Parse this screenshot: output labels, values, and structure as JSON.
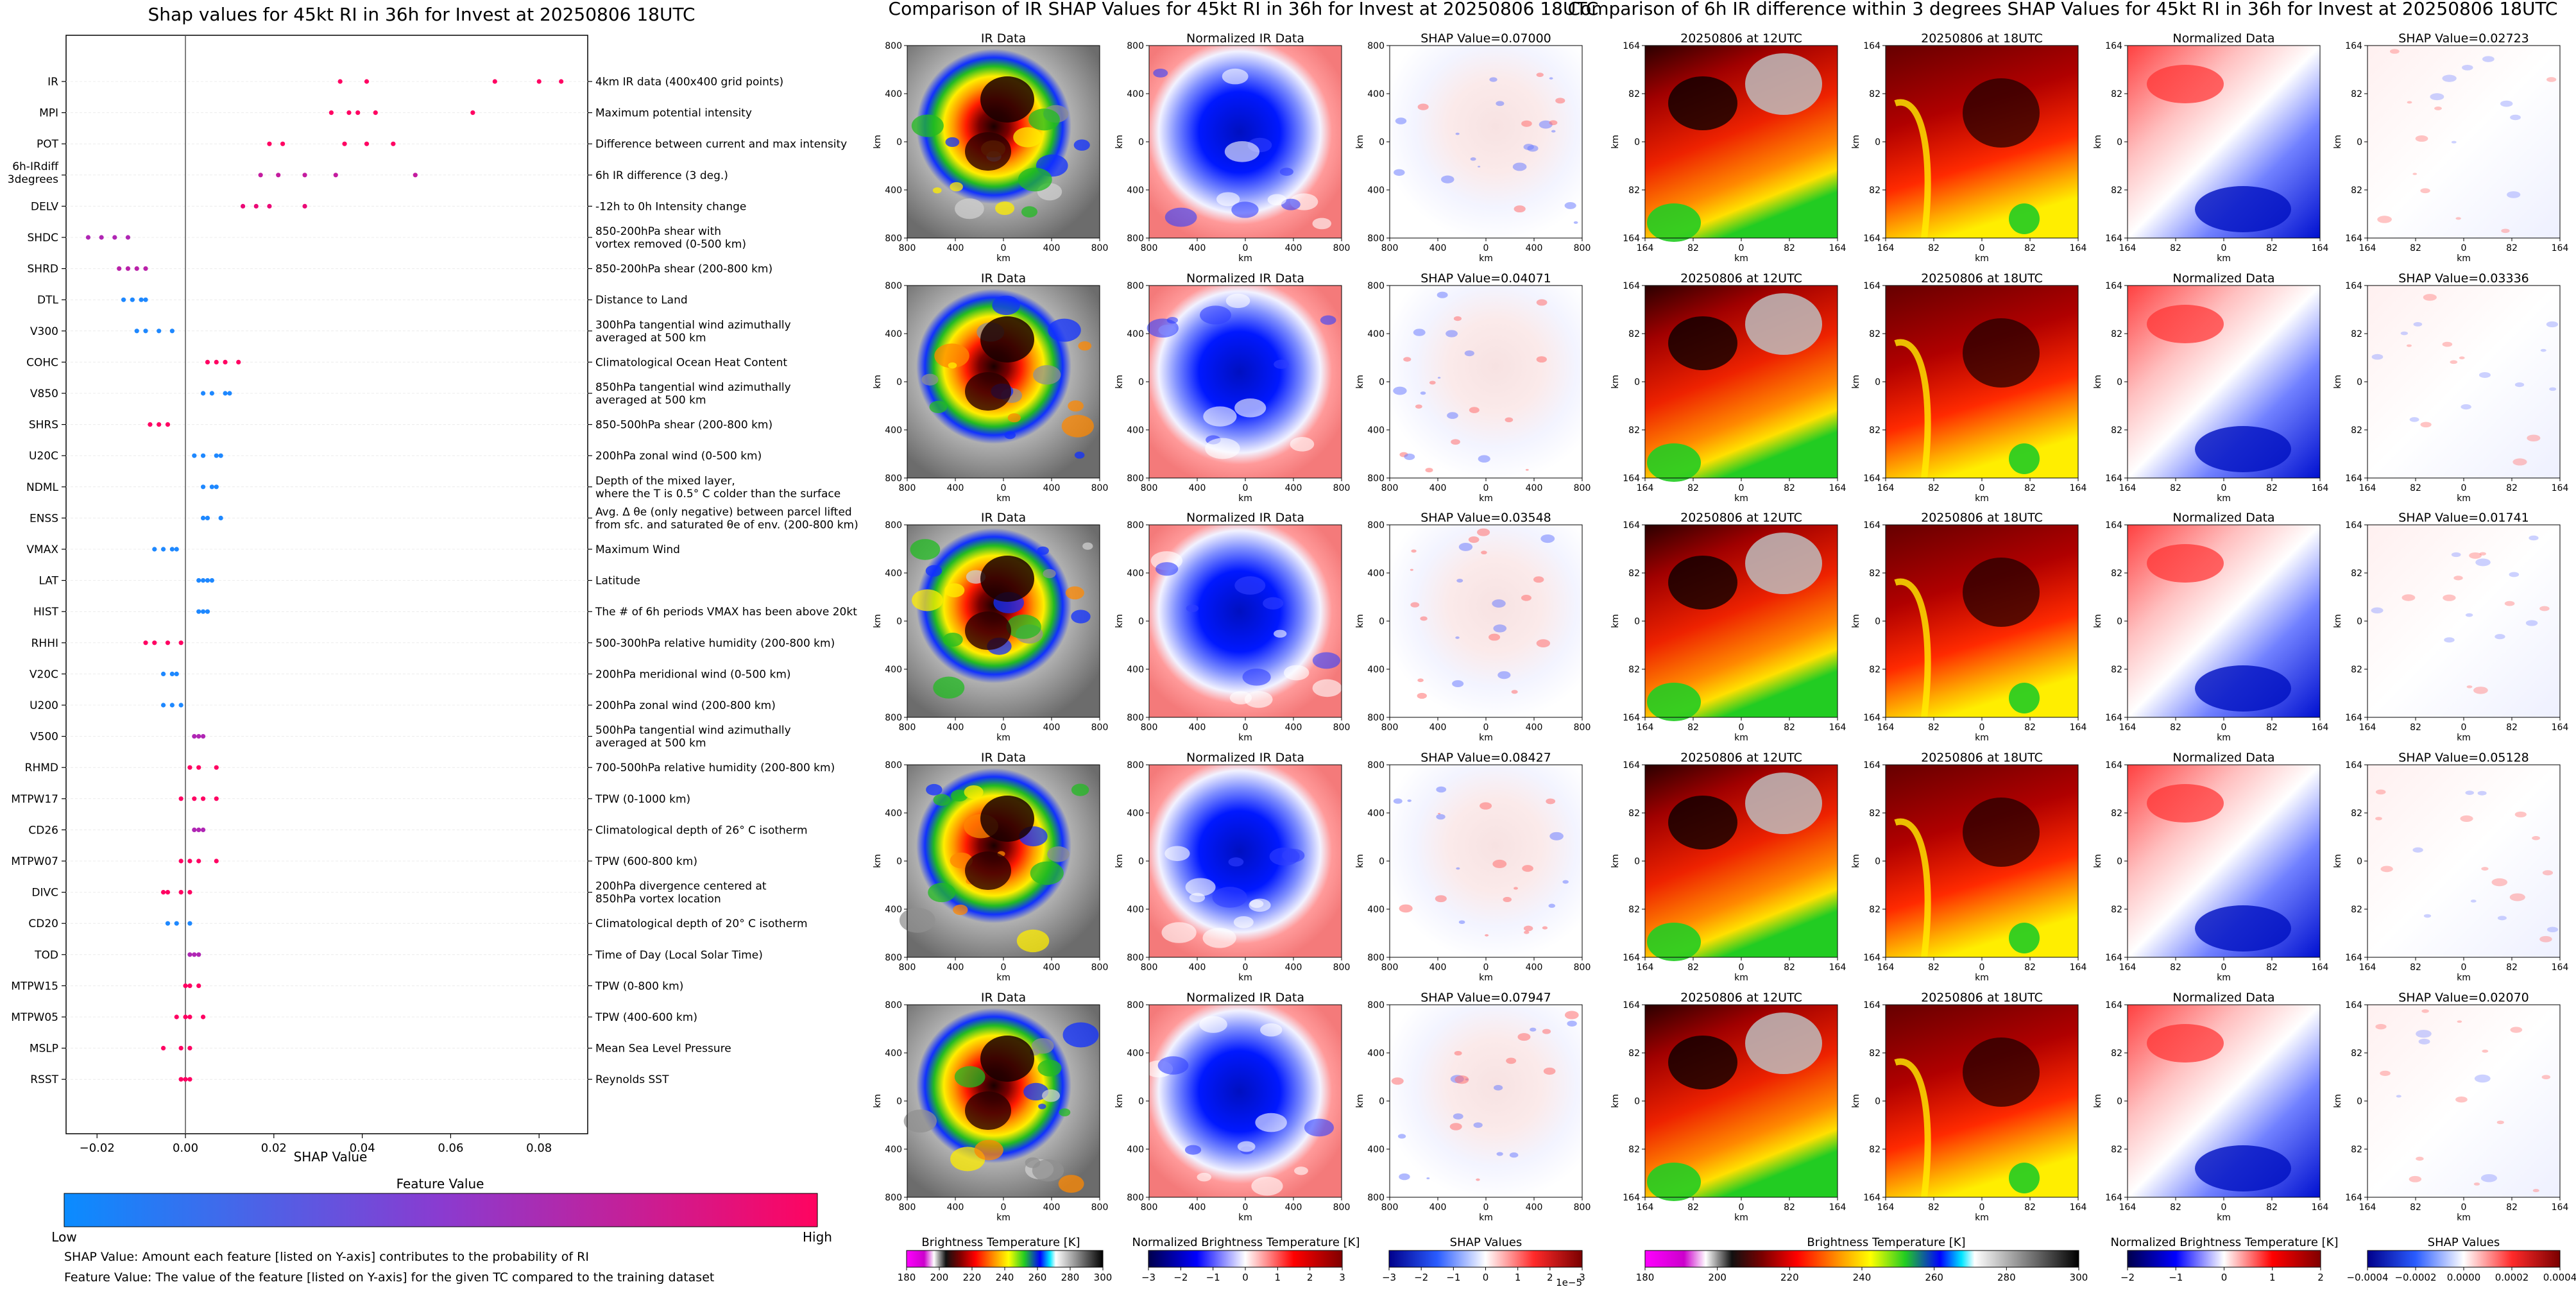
{
  "colors": {
    "shap_low": "#1e88ff",
    "shap_high": "#ff0062",
    "shap_mid": "#9c2fc8"
  },
  "left_chart": {
    "title": "Shap values for 45kt RI in 36h for Invest at 20250806 18UTC",
    "xlabel": "SHAP Value",
    "xticks": [
      "-0.02",
      "0.00",
      "0.02",
      "0.04",
      "0.06",
      "0.08"
    ],
    "colorbar_title": "Feature Value",
    "colorbar_low": "Low",
    "colorbar_high": "High",
    "footnote1": "SHAP Value: Amount each feature [listed on Y-axis] contributes to the probability of RI",
    "footnote2": "Feature Value: The value of the feature [listed on Y-axis] for the given TC compared to the training dataset"
  },
  "middle": {
    "title": "Comparison of IR SHAP Values for 45kt RI in 36h for Invest at 20250806 18UTC",
    "col_titles": [
      "IR Data",
      "Normalized IR Data"
    ],
    "shap_titles": [
      "SHAP Value=0.07000",
      "SHAP Value=0.04071",
      "SHAP Value=0.03548",
      "SHAP Value=0.08427",
      "SHAP Value=0.07947"
    ],
    "xticks": [
      "800",
      "400",
      "0",
      "400",
      "800"
    ],
    "yticks": [
      "800",
      "400",
      "0",
      "400",
      "800"
    ],
    "axis_label": "km",
    "cb1_title": "Brightness Temperature [K]",
    "cb1_ticks": [
      "180",
      "200",
      "220",
      "240",
      "260",
      "280",
      "300"
    ],
    "cb2_title": "Normalized Brightness Temperature [K]",
    "cb2_ticks": [
      "−3",
      "−2",
      "−1",
      "0",
      "1",
      "2",
      "3"
    ],
    "cb3_title": "SHAP Values",
    "cb3_ticks": [
      "−3",
      "−2",
      "−1",
      "0",
      "1",
      "2",
      "3"
    ],
    "cb3_exp": "1e−5"
  },
  "right": {
    "title": "Comparison of 6h IR difference within 3 degrees SHAP Values for 45kt RI in 36h for Invest at 20250806 18UTC",
    "col_titles": [
      "20250806 at 12UTC",
      "20250806 at 18UTC",
      "Normalized Data"
    ],
    "shap_titles": [
      "SHAP Value=0.02723",
      "SHAP Value=0.03336",
      "SHAP Value=0.01741",
      "SHAP Value=0.05128",
      "SHAP Value=0.02070"
    ],
    "xticks": [
      "164",
      "82",
      "0",
      "82",
      "164"
    ],
    "yticks": [
      "164",
      "82",
      "0",
      "82",
      "164"
    ],
    "axis_label": "km",
    "cb1_title": "Brightness Temperature [K]",
    "cb1_ticks": [
      "180",
      "200",
      "220",
      "240",
      "260",
      "280",
      "300"
    ],
    "cb2_title": "Normalized Brightness Temperature [K]",
    "cb2_ticks": [
      "−2",
      "−1",
      "0",
      "1",
      "2"
    ],
    "cb3_title": "SHAP Values",
    "cb3_ticks": [
      "−0.0004",
      "−0.0002",
      "0.0000",
      "0.0002",
      "0.0004"
    ]
  },
  "chart_data": [
    {
      "type": "scatter",
      "title": "Shap values for 45kt RI in 36h for Invest at 20250806 18UTC",
      "xlabel": "SHAP Value",
      "xlim": [
        -0.027,
        0.091
      ],
      "color_scale": "Feature Value (Low to High)",
      "features": [
        {
          "name": "IR",
          "desc": "4km IR data (400x400 grid points)",
          "points": [
            [
              0.035,
              1.0
            ],
            [
              0.041,
              1.0
            ],
            [
              0.07,
              1.0
            ],
            [
              0.08,
              1.0
            ],
            [
              0.085,
              1.0
            ]
          ]
        },
        {
          "name": "MPI",
          "desc": "Maximum potential intensity",
          "points": [
            [
              0.033,
              1.0
            ],
            [
              0.037,
              1.0
            ],
            [
              0.039,
              1.0
            ],
            [
              0.043,
              1.0
            ],
            [
              0.065,
              1.0
            ]
          ]
        },
        {
          "name": "POT",
          "desc": "Difference between current and max intensity",
          "points": [
            [
              0.019,
              1.0
            ],
            [
              0.022,
              1.0
            ],
            [
              0.036,
              1.0
            ],
            [
              0.041,
              1.0
            ],
            [
              0.047,
              1.0
            ]
          ]
        },
        {
          "name": "6h-IRdiff 3degrees",
          "desc": "6h IR difference (3 deg.)",
          "points": [
            [
              0.017,
              0.7
            ],
            [
              0.021,
              0.7
            ],
            [
              0.027,
              0.7
            ],
            [
              0.034,
              0.7
            ],
            [
              0.052,
              0.7
            ]
          ]
        },
        {
          "name": "DELV",
          "desc": "-12h to 0h Intensity change",
          "points": [
            [
              0.013,
              0.9
            ],
            [
              0.016,
              0.9
            ],
            [
              0.019,
              0.9
            ],
            [
              0.027,
              0.9
            ]
          ]
        },
        {
          "name": "SHDC",
          "desc": "850-200hPa shear with vortex removed (0-500 km)",
          "points": [
            [
              -0.022,
              0.6
            ],
            [
              -0.019,
              0.6
            ],
            [
              -0.016,
              0.6
            ],
            [
              -0.013,
              0.6
            ]
          ]
        },
        {
          "name": "SHRD",
          "desc": "850-200hPa shear (200-800 km)",
          "points": [
            [
              -0.015,
              0.65
            ],
            [
              -0.013,
              0.65
            ],
            [
              -0.011,
              0.65
            ],
            [
              -0.009,
              0.65
            ]
          ]
        },
        {
          "name": "DTL",
          "desc": "Distance to Land",
          "points": [
            [
              -0.014,
              0.0
            ],
            [
              -0.012,
              0.0
            ],
            [
              -0.01,
              0.0
            ],
            [
              -0.009,
              0.0
            ]
          ]
        },
        {
          "name": "V300",
          "desc": "300hPa tangential wind azimuthally averaged at 500 km",
          "points": [
            [
              -0.011,
              0.0
            ],
            [
              -0.009,
              0.0
            ],
            [
              -0.006,
              0.0
            ],
            [
              -0.003,
              0.0
            ]
          ]
        },
        {
          "name": "COHC",
          "desc": "Climatological Ocean Heat Content",
          "points": [
            [
              0.005,
              1.0
            ],
            [
              0.007,
              1.0
            ],
            [
              0.009,
              1.0
            ],
            [
              0.012,
              1.0
            ]
          ]
        },
        {
          "name": "V850",
          "desc": "850hPa tangential wind azimuthally averaged at 500 km",
          "points": [
            [
              0.004,
              0.0
            ],
            [
              0.006,
              0.0
            ],
            [
              0.009,
              0.0
            ],
            [
              0.01,
              0.0
            ]
          ]
        },
        {
          "name": "SHRS",
          "desc": "850-500hPa shear (200-800 km)",
          "points": [
            [
              -0.008,
              1.0
            ],
            [
              -0.006,
              1.0
            ],
            [
              -0.004,
              1.0
            ]
          ]
        },
        {
          "name": "U20C",
          "desc": "200hPa zonal wind (0-500 km)",
          "points": [
            [
              0.002,
              0.0
            ],
            [
              0.004,
              0.0
            ],
            [
              0.007,
              0.0
            ],
            [
              0.008,
              0.0
            ]
          ]
        },
        {
          "name": "NDML",
          "desc": "Depth of the mixed layer, where the T is 0.5° C colder than the surface",
          "points": [
            [
              0.004,
              0.0
            ],
            [
              0.006,
              0.0
            ],
            [
              0.007,
              0.0
            ]
          ]
        },
        {
          "name": "ENSS",
          "desc": "Avg. Δ θe (only negative) between parcel lifted from sfc. and saturated θe of env. (200-800 km)",
          "points": [
            [
              0.004,
              0.0
            ],
            [
              0.005,
              0.0
            ],
            [
              0.008,
              0.0
            ]
          ]
        },
        {
          "name": "VMAX",
          "desc": "Maximum Wind",
          "points": [
            [
              -0.007,
              0.0
            ],
            [
              -0.005,
              0.0
            ],
            [
              -0.003,
              0.0
            ],
            [
              -0.002,
              0.0
            ]
          ]
        },
        {
          "name": "LAT",
          "desc": "Latitude",
          "points": [
            [
              0.003,
              0.0
            ],
            [
              0.004,
              0.0
            ],
            [
              0.005,
              0.0
            ],
            [
              0.006,
              0.0
            ]
          ]
        },
        {
          "name": "HIST",
          "desc": "The # of 6h periods VMAX has been above 20kt",
          "points": [
            [
              0.003,
              0.0
            ],
            [
              0.004,
              0.0
            ],
            [
              0.005,
              0.0
            ]
          ]
        },
        {
          "name": "RHHI",
          "desc": "500-300hPa relative humidity (200-800 km)",
          "points": [
            [
              -0.009,
              1.0
            ],
            [
              -0.007,
              1.0
            ],
            [
              -0.004,
              1.0
            ],
            [
              -0.001,
              1.0
            ]
          ]
        },
        {
          "name": "V20C",
          "desc": "200hPa meridional wind (0-500 km)",
          "points": [
            [
              -0.005,
              0.0
            ],
            [
              -0.003,
              0.0
            ],
            [
              -0.002,
              0.0
            ]
          ]
        },
        {
          "name": "U200",
          "desc": "200hPa zonal wind (200-800 km)",
          "points": [
            [
              -0.005,
              0.0
            ],
            [
              -0.003,
              0.0
            ],
            [
              -0.001,
              0.0
            ]
          ]
        },
        {
          "name": "V500",
          "desc": "500hPa tangential wind azimuthally averaged at 500 km",
          "points": [
            [
              0.002,
              0.6
            ],
            [
              0.003,
              0.6
            ],
            [
              0.004,
              0.6
            ]
          ]
        },
        {
          "name": "RHMD",
          "desc": "700-500hPa relative humidity (200-800 km)",
          "points": [
            [
              0.001,
              1.0
            ],
            [
              0.003,
              1.0
            ],
            [
              0.007,
              1.0
            ]
          ]
        },
        {
          "name": "MTPW17",
          "desc": "TPW (0-1000 km)",
          "points": [
            [
              -0.001,
              1.0
            ],
            [
              0.002,
              1.0
            ],
            [
              0.004,
              1.0
            ],
            [
              0.007,
              1.0
            ]
          ]
        },
        {
          "name": "CD26",
          "desc": "Climatological depth of 26° C isotherm",
          "points": [
            [
              0.002,
              0.6
            ],
            [
              0.003,
              0.6
            ],
            [
              0.004,
              0.6
            ]
          ]
        },
        {
          "name": "MTPW07",
          "desc": "TPW (600-800 km)",
          "points": [
            [
              -0.001,
              1.0
            ],
            [
              0.001,
              1.0
            ],
            [
              0.003,
              1.0
            ],
            [
              0.007,
              1.0
            ]
          ]
        },
        {
          "name": "DIVC",
          "desc": "200hPa divergence centered at 850hPa vortex location",
          "points": [
            [
              -0.005,
              1.0
            ],
            [
              -0.004,
              1.0
            ],
            [
              -0.001,
              1.0
            ],
            [
              0.001,
              1.0
            ]
          ]
        },
        {
          "name": "CD20",
          "desc": "Climatological depth of 20° C isotherm",
          "points": [
            [
              -0.004,
              0.0
            ],
            [
              -0.002,
              0.0
            ],
            [
              0.001,
              0.0
            ]
          ]
        },
        {
          "name": "TOD",
          "desc": "Time of Day (Local Solar Time)",
          "points": [
            [
              0.001,
              0.6
            ],
            [
              0.002,
              0.6
            ],
            [
              0.003,
              0.6
            ]
          ]
        },
        {
          "name": "MTPW15",
          "desc": "TPW (0-800 km)",
          "points": [
            [
              0.0,
              1.0
            ],
            [
              0.001,
              1.0
            ],
            [
              0.003,
              1.0
            ]
          ]
        },
        {
          "name": "MTPW05",
          "desc": "TPW (400-600 km)",
          "points": [
            [
              -0.002,
              1.0
            ],
            [
              0.0,
              1.0
            ],
            [
              0.001,
              1.0
            ],
            [
              0.004,
              1.0
            ]
          ]
        },
        {
          "name": "MSLP",
          "desc": "Mean Sea Level Pressure",
          "points": [
            [
              -0.005,
              1.0
            ],
            [
              -0.001,
              1.0
            ],
            [
              0.001,
              1.0
            ]
          ]
        },
        {
          "name": "RSST",
          "desc": "Reynolds SST",
          "points": [
            [
              -0.001,
              1.0
            ],
            [
              0.0,
              1.0
            ],
            [
              0.001,
              1.0
            ]
          ]
        }
      ]
    },
    {
      "type": "heatmap",
      "title": "Comparison of IR SHAP Values for 45kt RI in 36h for Invest at 20250806 18UTC",
      "panels_per_row": [
        "IR Data",
        "Normalized IR Data",
        "SHAP"
      ],
      "shap_values": [
        0.07,
        0.04071,
        0.03548,
        0.08427,
        0.07947
      ]
    },
    {
      "type": "heatmap",
      "title": "Comparison of 6h IR difference within 3 degrees SHAP Values for 45kt RI in 36h for Invest at 20250806 18UTC",
      "panels_per_row": [
        "20250806 at 12UTC",
        "20250806 at 18UTC",
        "Normalized Data",
        "SHAP"
      ],
      "shap_values": [
        0.02723,
        0.03336,
        0.01741,
        0.05128,
        0.0207
      ]
    }
  ]
}
